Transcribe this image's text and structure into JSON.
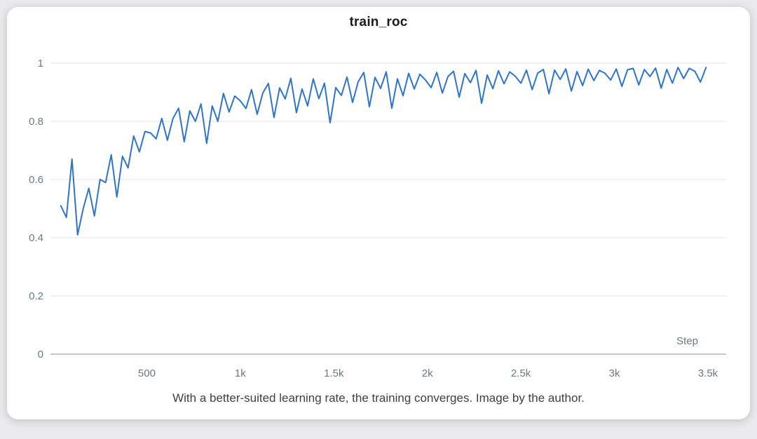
{
  "chart_data": {
    "type": "line",
    "title": "train_roc",
    "x_axis_label": "Step",
    "xlim": [
      0,
      3500
    ],
    "ylim": [
      0,
      1
    ],
    "grid": "horizontal",
    "legend": "none",
    "line_color": "#2e74c9",
    "grid_color": "#e4e4e4",
    "axis_line_color": "#c9c9c9",
    "tick_text_color": "#6b7785",
    "x_ticks": [
      {
        "value": 500,
        "label": "500"
      },
      {
        "value": 1000,
        "label": "1k"
      },
      {
        "value": 1500,
        "label": "1.5k"
      },
      {
        "value": 2000,
        "label": "2k"
      },
      {
        "value": 2500,
        "label": "2.5k"
      },
      {
        "value": 3000,
        "label": "3k"
      },
      {
        "value": 3500,
        "label": "3.5k"
      }
    ],
    "y_ticks": [
      {
        "value": 0,
        "label": "0"
      },
      {
        "value": 0.2,
        "label": "0.2"
      },
      {
        "value": 0.4,
        "label": "0.4"
      },
      {
        "value": 0.6,
        "label": "0.6"
      },
      {
        "value": 0.8,
        "label": "0.8"
      },
      {
        "value": 1,
        "label": "1"
      }
    ],
    "series": [
      {
        "name": "train_roc",
        "points": [
          [
            40,
            0.51
          ],
          [
            70,
            0.47
          ],
          [
            100,
            0.67
          ],
          [
            130,
            0.41
          ],
          [
            160,
            0.5
          ],
          [
            190,
            0.57
          ],
          [
            220,
            0.475
          ],
          [
            250,
            0.6
          ],
          [
            280,
            0.59
          ],
          [
            310,
            0.685
          ],
          [
            340,
            0.54
          ],
          [
            370,
            0.68
          ],
          [
            400,
            0.64
          ],
          [
            430,
            0.75
          ],
          [
            460,
            0.695
          ],
          [
            490,
            0.765
          ],
          [
            520,
            0.76
          ],
          [
            550,
            0.74
          ],
          [
            580,
            0.81
          ],
          [
            610,
            0.735
          ],
          [
            640,
            0.81
          ],
          [
            670,
            0.845
          ],
          [
            700,
            0.73
          ],
          [
            730,
            0.836
          ],
          [
            760,
            0.8
          ],
          [
            790,
            0.86
          ],
          [
            820,
            0.724
          ],
          [
            850,
            0.853
          ],
          [
            880,
            0.8
          ],
          [
            910,
            0.896
          ],
          [
            940,
            0.832
          ],
          [
            970,
            0.887
          ],
          [
            1000,
            0.87
          ],
          [
            1030,
            0.844
          ],
          [
            1060,
            0.909
          ],
          [
            1090,
            0.824
          ],
          [
            1120,
            0.897
          ],
          [
            1150,
            0.93
          ],
          [
            1180,
            0.813
          ],
          [
            1210,
            0.915
          ],
          [
            1240,
            0.877
          ],
          [
            1270,
            0.948
          ],
          [
            1300,
            0.83
          ],
          [
            1330,
            0.911
          ],
          [
            1360,
            0.853
          ],
          [
            1390,
            0.946
          ],
          [
            1420,
            0.878
          ],
          [
            1450,
            0.931
          ],
          [
            1480,
            0.795
          ],
          [
            1510,
            0.916
          ],
          [
            1540,
            0.889
          ],
          [
            1570,
            0.952
          ],
          [
            1600,
            0.865
          ],
          [
            1630,
            0.936
          ],
          [
            1660,
            0.968
          ],
          [
            1690,
            0.85
          ],
          [
            1720,
            0.951
          ],
          [
            1750,
            0.913
          ],
          [
            1780,
            0.97
          ],
          [
            1810,
            0.845
          ],
          [
            1840,
            0.946
          ],
          [
            1870,
            0.888
          ],
          [
            1900,
            0.965
          ],
          [
            1930,
            0.911
          ],
          [
            1960,
            0.962
          ],
          [
            1990,
            0.942
          ],
          [
            2020,
            0.916
          ],
          [
            2050,
            0.968
          ],
          [
            2080,
            0.897
          ],
          [
            2110,
            0.954
          ],
          [
            2140,
            0.972
          ],
          [
            2170,
            0.883
          ],
          [
            2200,
            0.964
          ],
          [
            2230,
            0.933
          ],
          [
            2260,
            0.975
          ],
          [
            2290,
            0.862
          ],
          [
            2320,
            0.959
          ],
          [
            2350,
            0.912
          ],
          [
            2380,
            0.974
          ],
          [
            2410,
            0.929
          ],
          [
            2440,
            0.97
          ],
          [
            2470,
            0.955
          ],
          [
            2500,
            0.931
          ],
          [
            2530,
            0.976
          ],
          [
            2560,
            0.909
          ],
          [
            2590,
            0.966
          ],
          [
            2620,
            0.978
          ],
          [
            2650,
            0.895
          ],
          [
            2680,
            0.976
          ],
          [
            2710,
            0.944
          ],
          [
            2740,
            0.98
          ],
          [
            2770,
            0.904
          ],
          [
            2800,
            0.971
          ],
          [
            2830,
            0.923
          ],
          [
            2860,
            0.979
          ],
          [
            2890,
            0.94
          ],
          [
            2920,
            0.975
          ],
          [
            2950,
            0.965
          ],
          [
            2980,
            0.942
          ],
          [
            3010,
            0.98
          ],
          [
            3040,
            0.92
          ],
          [
            3070,
            0.977
          ],
          [
            3100,
            0.982
          ],
          [
            3130,
            0.925
          ],
          [
            3160,
            0.978
          ],
          [
            3190,
            0.954
          ],
          [
            3220,
            0.983
          ],
          [
            3250,
            0.914
          ],
          [
            3280,
            0.978
          ],
          [
            3310,
            0.931
          ],
          [
            3340,
            0.985
          ],
          [
            3370,
            0.947
          ],
          [
            3400,
            0.982
          ],
          [
            3430,
            0.972
          ],
          [
            3460,
            0.935
          ],
          [
            3490,
            0.985
          ]
        ]
      }
    ]
  },
  "caption": {
    "text": "With a better-suited learning rate, the training converges. Image by the author."
  }
}
